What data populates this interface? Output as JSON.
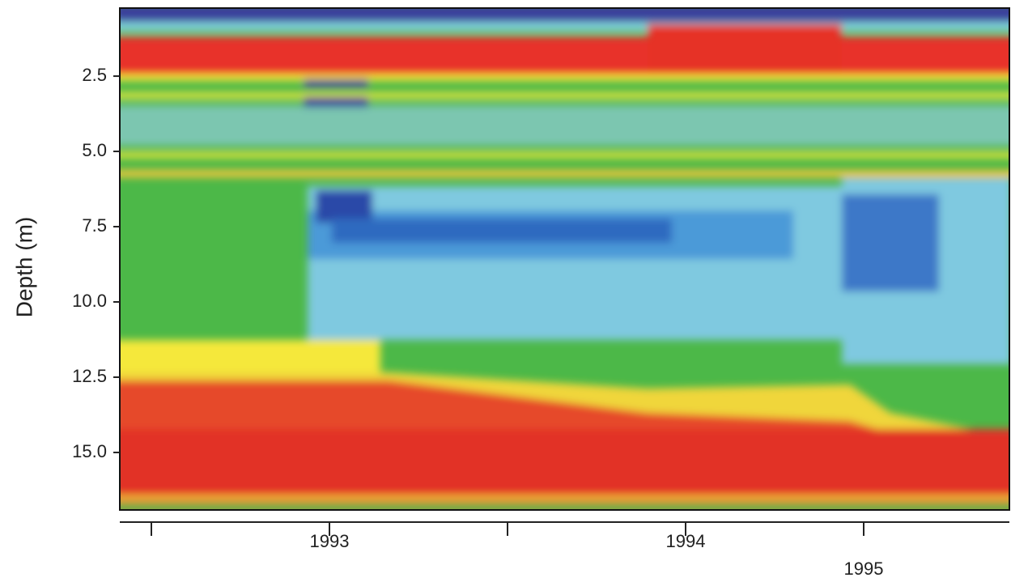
{
  "chart_data": {
    "type": "heatmap",
    "y_label": "Depth (m)",
    "ylim": [
      0.24,
      16.91
    ],
    "yticks": [
      2.5,
      {
        "value": 5,
        "label": "5.0"
      },
      7.5,
      {
        "value": 10,
        "label": "10.0"
      },
      12.5,
      {
        "value": 15,
        "label": "15.0"
      }
    ],
    "categories": [
      null,
      "1993",
      null,
      "1994",
      "1995"
    ]
  }
}
